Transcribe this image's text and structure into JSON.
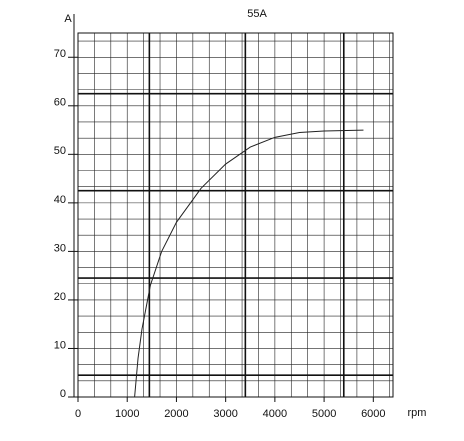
{
  "chart_data": {
    "type": "line",
    "title": "55A",
    "x_label": "rpm",
    "y_label": "A",
    "x": [
      1150,
      1220,
      1300,
      1470,
      1700,
      2000,
      2500,
      3000,
      3500,
      4000,
      4500,
      5000,
      5800
    ],
    "series": [
      {
        "name": "55A",
        "color": "#222222",
        "values": [
          0,
          8,
          14,
          23,
          30,
          36,
          43,
          48,
          51.5,
          53.5,
          54.5,
          54.8,
          55
        ]
      }
    ],
    "xlim": [
      0,
      6400
    ],
    "ylim": [
      0,
      75
    ],
    "xticks": [
      0,
      1000,
      2000,
      3000,
      4000,
      5000,
      6000
    ],
    "yticks": [
      0,
      10,
      20,
      30,
      40,
      50,
      60,
      70
    ],
    "x_reference_lines": [
      1450,
      3400,
      5400
    ],
    "y_reference_lines": [
      4.5,
      24.5,
      42.5,
      62.5
    ],
    "grid": true
  }
}
